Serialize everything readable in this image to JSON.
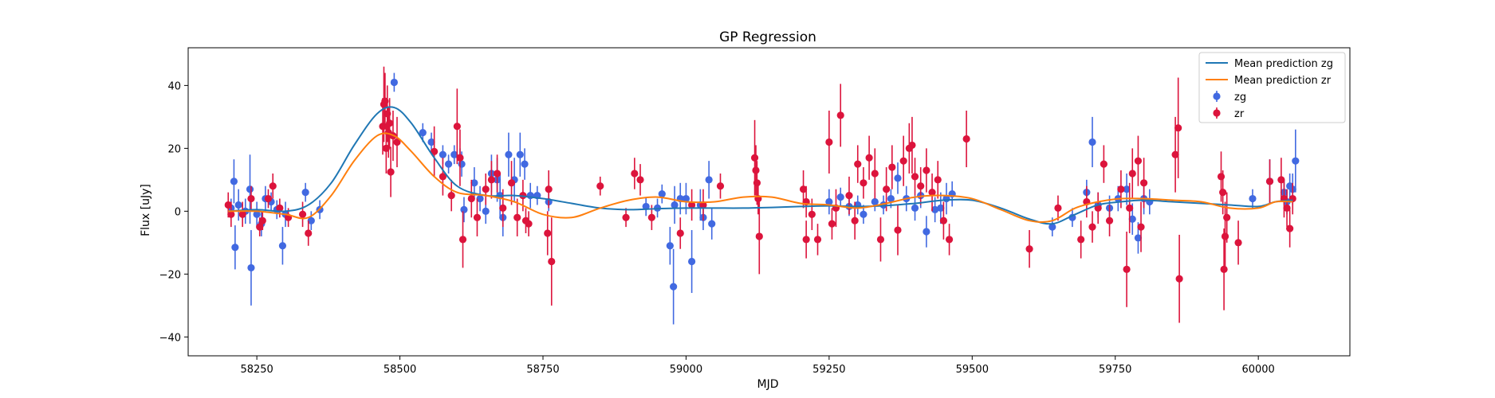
{
  "chart_data": {
    "type": "scatter",
    "title": "GP Regression",
    "xlabel": "MJD",
    "ylabel": "Flux [uJy]",
    "xlim": [
      58130,
      60160
    ],
    "ylim": [
      -46,
      52
    ],
    "xticks": [
      58250,
      58500,
      58750,
      59000,
      59250,
      59500,
      59750,
      60000
    ],
    "yticks": [
      -40,
      -20,
      0,
      20,
      40
    ],
    "grid": false,
    "legend_position": "top-right",
    "legend": [
      "Mean prediction zg",
      "Mean prediction zr",
      "zg",
      "zr"
    ],
    "colors": {
      "zg": "#4169e1",
      "zr": "#dc143c",
      "pred_zg": "#1f77b4",
      "pred_zr": "#ff7f0e"
    },
    "series": [
      {
        "name": "Mean prediction zg",
        "kind": "line",
        "x": [
          58200,
          58250,
          58300,
          58340,
          58380,
          58420,
          58460,
          58490,
          58520,
          58560,
          58600,
          58650,
          58700,
          58750,
          58800,
          58850,
          58900,
          58950,
          59000,
          59050,
          59100,
          59150,
          59200,
          59250,
          59300,
          59350,
          59400,
          59450,
          59500,
          59550,
          59600,
          59640,
          59680,
          59720,
          59760,
          59800,
          59850,
          59900,
          59950,
          60000,
          60030,
          60060
        ],
        "y": [
          0,
          0.5,
          0,
          2,
          9,
          21,
          31,
          33,
          28,
          17,
          8,
          5,
          5,
          4,
          2.5,
          1,
          0.5,
          0.8,
          1,
          1,
          1,
          1.2,
          1.5,
          1.7,
          1.5,
          1.8,
          2.5,
          3.5,
          3.5,
          1,
          -2.5,
          -4,
          -1,
          2,
          3,
          3.5,
          3,
          2.5,
          2,
          1.5,
          3,
          3.5
        ]
      },
      {
        "name": "Mean prediction zr",
        "kind": "line",
        "x": [
          58200,
          58250,
          58300,
          58340,
          58380,
          58420,
          58460,
          58490,
          58520,
          58560,
          58600,
          58650,
          58700,
          58750,
          58800,
          58850,
          58900,
          58950,
          59000,
          59050,
          59100,
          59150,
          59200,
          59250,
          59300,
          59350,
          59400,
          59450,
          59500,
          59550,
          59600,
          59640,
          59680,
          59720,
          59760,
          59800,
          59850,
          59900,
          59950,
          60000,
          60030,
          60060
        ],
        "y": [
          0,
          0,
          -1,
          -2,
          5,
          16,
          24,
          24,
          19,
          11,
          6,
          5,
          3,
          -1,
          -2,
          1,
          3.5,
          4.5,
          3,
          3,
          4.5,
          4.5,
          2.5,
          2,
          1,
          2.5,
          4.5,
          5,
          4,
          0.5,
          -3,
          -3,
          1,
          3,
          4,
          4,
          3.5,
          3,
          1,
          1,
          3,
          3
        ]
      },
      {
        "name": "zg",
        "kind": "errorbar",
        "points": [
          [
            58205,
            1,
            3
          ],
          [
            58210,
            9.5,
            7
          ],
          [
            58212,
            -11.5,
            7
          ],
          [
            58218,
            2,
            5
          ],
          [
            58230,
            0,
            4
          ],
          [
            58238,
            7,
            11
          ],
          [
            58240,
            -18,
            12
          ],
          [
            58250,
            -1,
            4
          ],
          [
            58258,
            -4,
            4
          ],
          [
            58265,
            4,
            4
          ],
          [
            58275,
            3,
            3
          ],
          [
            58285,
            0.5,
            3
          ],
          [
            58295,
            -11,
            6
          ],
          [
            58300,
            -1,
            4
          ],
          [
            58335,
            6,
            3
          ],
          [
            58345,
            -3,
            3
          ],
          [
            58360,
            0.5,
            3
          ],
          [
            58490,
            41,
            3
          ],
          [
            58540,
            25,
            3
          ],
          [
            58555,
            22,
            3
          ],
          [
            58575,
            18,
            3
          ],
          [
            58585,
            15,
            3
          ],
          [
            58595,
            18,
            3
          ],
          [
            58605,
            17,
            3
          ],
          [
            58608,
            15,
            4
          ],
          [
            58612,
            0.5,
            4
          ],
          [
            58630,
            9,
            5
          ],
          [
            58640,
            4,
            4
          ],
          [
            58650,
            0,
            4
          ],
          [
            58660,
            12,
            6
          ],
          [
            58670,
            10,
            7
          ],
          [
            58675,
            5,
            7
          ],
          [
            58680,
            -2,
            6
          ],
          [
            58690,
            18,
            7
          ],
          [
            58700,
            10,
            7
          ],
          [
            58710,
            18,
            7
          ],
          [
            58718,
            15,
            5
          ],
          [
            58728,
            5,
            4
          ],
          [
            58740,
            5,
            3
          ],
          [
            58760,
            3,
            3
          ],
          [
            58930,
            1.5,
            3
          ],
          [
            58950,
            1,
            3
          ],
          [
            58958,
            5.5,
            3
          ],
          [
            58972,
            -11,
            6
          ],
          [
            58978,
            -24,
            12
          ],
          [
            58980,
            2,
            6
          ],
          [
            58990,
            4,
            5
          ],
          [
            59000,
            4,
            5
          ],
          [
            59010,
            -16,
            10
          ],
          [
            59025,
            2,
            5
          ],
          [
            59030,
            -2,
            4
          ],
          [
            59040,
            10,
            6
          ],
          [
            59045,
            -4,
            5
          ],
          [
            59250,
            3,
            4
          ],
          [
            59270,
            4.5,
            3
          ],
          [
            59285,
            1.5,
            3
          ],
          [
            59300,
            2,
            3
          ],
          [
            59310,
            -1,
            3
          ],
          [
            59330,
            3,
            3
          ],
          [
            59345,
            2,
            3
          ],
          [
            59358,
            4,
            3
          ],
          [
            59370,
            10.5,
            5
          ],
          [
            59385,
            4,
            4
          ],
          [
            59400,
            1,
            4
          ],
          [
            59410,
            5,
            4
          ],
          [
            59420,
            -6.5,
            5
          ],
          [
            59435,
            0.5,
            4
          ],
          [
            59445,
            1,
            5
          ],
          [
            59455,
            4,
            5
          ],
          [
            59465,
            5.5,
            4
          ],
          [
            59640,
            -5,
            3
          ],
          [
            59675,
            -2,
            3
          ],
          [
            59700,
            6,
            4
          ],
          [
            59710,
            22,
            8
          ],
          [
            59720,
            2,
            4
          ],
          [
            59740,
            1,
            4
          ],
          [
            59755,
            4,
            4
          ],
          [
            59770,
            7,
            5
          ],
          [
            59780,
            -2.5,
            5
          ],
          [
            59790,
            -8.5,
            5
          ],
          [
            59800,
            4,
            5
          ],
          [
            59810,
            3,
            4
          ],
          [
            59990,
            4,
            3
          ],
          [
            60020,
            9.5,
            7
          ],
          [
            60045,
            6,
            4
          ],
          [
            60050,
            3,
            4
          ],
          [
            60055,
            8,
            4
          ],
          [
            60060,
            7,
            5
          ],
          [
            60065,
            16,
            10
          ]
        ]
      },
      {
        "name": "zr",
        "kind": "errorbar",
        "points": [
          [
            58200,
            2,
            4
          ],
          [
            58205,
            -1,
            4
          ],
          [
            58225,
            -1,
            4
          ],
          [
            58240,
            4,
            4
          ],
          [
            58255,
            -5,
            3
          ],
          [
            58260,
            -3,
            3
          ],
          [
            58270,
            4,
            3
          ],
          [
            58278,
            8,
            4
          ],
          [
            58290,
            1,
            3
          ],
          [
            58305,
            -2,
            3
          ],
          [
            58330,
            -1,
            4
          ],
          [
            58340,
            -7,
            4
          ],
          [
            58470,
            27,
            9
          ],
          [
            58472,
            34,
            12
          ],
          [
            58474,
            35,
            9
          ],
          [
            58476,
            20,
            8
          ],
          [
            58478,
            31,
            9
          ],
          [
            58480,
            25,
            8
          ],
          [
            58482,
            28,
            8
          ],
          [
            58484,
            12.5,
            8
          ],
          [
            58488,
            24,
            8
          ],
          [
            58495,
            22,
            8
          ],
          [
            58560,
            19,
            8
          ],
          [
            58575,
            11,
            6
          ],
          [
            58590,
            5,
            5
          ],
          [
            58600,
            27,
            12
          ],
          [
            58605,
            17,
            9
          ],
          [
            58610,
            -9,
            9
          ],
          [
            58625,
            4,
            6
          ],
          [
            58635,
            -2,
            6
          ],
          [
            58650,
            7,
            5
          ],
          [
            58660,
            10,
            6
          ],
          [
            58670,
            12,
            6
          ],
          [
            58680,
            1,
            6
          ],
          [
            58695,
            9,
            7
          ],
          [
            58705,
            -2,
            6
          ],
          [
            58715,
            5,
            5
          ],
          [
            58720,
            -3,
            4
          ],
          [
            58725,
            -4,
            4
          ],
          [
            58760,
            7,
            6
          ],
          [
            58765,
            -16,
            14
          ],
          [
            58758,
            -7,
            7
          ],
          [
            58850,
            8,
            3
          ],
          [
            58895,
            -2,
            3
          ],
          [
            58910,
            12,
            5
          ],
          [
            58920,
            10,
            5
          ],
          [
            58940,
            -2,
            4
          ],
          [
            58990,
            -7,
            5
          ],
          [
            59010,
            2,
            5
          ],
          [
            59030,
            2,
            5
          ],
          [
            59060,
            8,
            4
          ],
          [
            59120,
            17,
            12
          ],
          [
            59122,
            13,
            8
          ],
          [
            59124,
            9,
            7
          ],
          [
            59126,
            4,
            5
          ],
          [
            59128,
            -8,
            12
          ],
          [
            59205,
            7,
            6
          ],
          [
            59210,
            3,
            5
          ],
          [
            59210,
            -9,
            6
          ],
          [
            59220,
            -1,
            5
          ],
          [
            59230,
            -9,
            5
          ],
          [
            59250,
            22,
            10
          ],
          [
            59255,
            -4,
            5
          ],
          [
            59262,
            1,
            6
          ],
          [
            59270,
            30.5,
            10
          ],
          [
            59285,
            5,
            6
          ],
          [
            59295,
            -3,
            6
          ],
          [
            59300,
            15,
            6
          ],
          [
            59310,
            9,
            5
          ],
          [
            59320,
            17,
            7
          ],
          [
            59330,
            12,
            8
          ],
          [
            59340,
            -9,
            7
          ],
          [
            59350,
            7,
            7
          ],
          [
            59360,
            14,
            7
          ],
          [
            59370,
            -6,
            8
          ],
          [
            59380,
            16,
            8
          ],
          [
            59390,
            20,
            8
          ],
          [
            59395,
            21,
            9
          ],
          [
            59400,
            11,
            6
          ],
          [
            59410,
            8,
            6
          ],
          [
            59420,
            13,
            7
          ],
          [
            59430,
            6,
            6
          ],
          [
            59440,
            10,
            6
          ],
          [
            59450,
            -3,
            6
          ],
          [
            59460,
            -9,
            5
          ],
          [
            59490,
            23,
            9
          ],
          [
            59600,
            -12,
            6
          ],
          [
            59650,
            1,
            4
          ],
          [
            59690,
            -9,
            6
          ],
          [
            59700,
            3,
            5
          ],
          [
            59710,
            -5,
            5
          ],
          [
            59720,
            1,
            5
          ],
          [
            59730,
            15,
            6
          ],
          [
            59740,
            -3,
            5
          ],
          [
            59760,
            7,
            6
          ],
          [
            59770,
            -18.5,
            12
          ],
          [
            59775,
            1,
            8
          ],
          [
            59780,
            12,
            8
          ],
          [
            59790,
            16,
            8
          ],
          [
            59795,
            -5,
            8
          ],
          [
            59800,
            9,
            8
          ],
          [
            59855,
            18,
            12
          ],
          [
            59860,
            26.5,
            16
          ],
          [
            59862,
            -21.5,
            14
          ],
          [
            59935,
            11,
            8
          ],
          [
            59938,
            6,
            7
          ],
          [
            59940,
            -18.5,
            13
          ],
          [
            59942,
            -8,
            11
          ],
          [
            59945,
            -2,
            8
          ],
          [
            59965,
            -10,
            7
          ],
          [
            60020,
            9.5,
            7
          ],
          [
            60040,
            10,
            7
          ],
          [
            60045,
            4,
            6
          ],
          [
            60050,
            1,
            6
          ],
          [
            60055,
            -5.5,
            6
          ],
          [
            60060,
            4,
            5
          ]
        ]
      }
    ]
  }
}
